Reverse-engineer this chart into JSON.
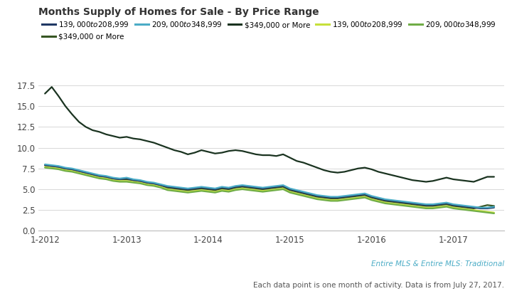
{
  "title": "Months Supply of Homes for Sale - By Price Range",
  "footnote": "Each data point is one month of activity. Data is from July 27, 2017.",
  "background_color": "#ffffff",
  "plot_bg_color": "#ffffff",
  "grid_color": "#d8d8d8",
  "ylim": [
    0.0,
    18.5
  ],
  "yticks": [
    0.0,
    2.5,
    5.0,
    7.5,
    10.0,
    12.5,
    15.0,
    17.5
  ],
  "xtick_labels": [
    "1-2012",
    "1-2013",
    "1-2014",
    "1-2015",
    "1-2016",
    "1-2017"
  ],
  "colors": {
    "dark_139_208": "#1f3864",
    "dark_209_348": "#4bacc6",
    "dark_349_more": "#1a3320",
    "green_139_208": "#c6e03b",
    "green_209_348": "#70ad47",
    "green_349_more": "#375623"
  },
  "labels": {
    "dark_139_208": "$139,000 to $208,999",
    "dark_209_348": "$209,000 to $348,999",
    "dark_349_more": "$349,000 or More",
    "green_139_208": "$139,000 to $208,999",
    "green_209_348": "$209,000 to $348,999",
    "green_349_more": "$349,000 or More"
  },
  "series": {
    "dark_139_208": [
      7.9,
      7.8,
      7.7,
      7.5,
      7.4,
      7.2,
      7.0,
      6.8,
      6.6,
      6.5,
      6.3,
      6.2,
      6.3,
      6.1,
      6.0,
      5.8,
      5.7,
      5.5,
      5.3,
      5.2,
      5.1,
      5.0,
      5.1,
      5.2,
      5.1,
      5.0,
      5.2,
      5.1,
      5.3,
      5.4,
      5.3,
      5.2,
      5.1,
      5.2,
      5.3,
      5.4,
      5.0,
      4.8,
      4.6,
      4.4,
      4.2,
      4.1,
      4.0,
      4.0,
      4.1,
      4.2,
      4.3,
      4.4,
      4.1,
      3.9,
      3.7,
      3.6,
      3.5,
      3.4,
      3.3,
      3.2,
      3.1,
      3.1,
      3.2,
      3.3,
      3.1,
      3.0,
      2.9,
      2.8,
      2.7,
      2.7,
      2.8
    ],
    "dark_209_348": [
      8.0,
      7.9,
      7.8,
      7.6,
      7.5,
      7.3,
      7.1,
      6.9,
      6.7,
      6.6,
      6.4,
      6.3,
      6.4,
      6.2,
      6.1,
      5.9,
      5.8,
      5.6,
      5.4,
      5.3,
      5.2,
      5.1,
      5.2,
      5.3,
      5.2,
      5.1,
      5.3,
      5.2,
      5.4,
      5.5,
      5.4,
      5.3,
      5.2,
      5.3,
      5.4,
      5.5,
      5.1,
      4.9,
      4.7,
      4.5,
      4.3,
      4.2,
      4.1,
      4.1,
      4.2,
      4.3,
      4.4,
      4.5,
      4.2,
      4.0,
      3.8,
      3.7,
      3.6,
      3.5,
      3.4,
      3.3,
      3.2,
      3.2,
      3.3,
      3.4,
      3.2,
      3.1,
      3.0,
      2.9,
      2.8,
      2.8,
      2.9
    ],
    "dark_349_more": [
      16.5,
      17.3,
      16.2,
      15.0,
      14.0,
      13.1,
      12.5,
      12.1,
      11.9,
      11.6,
      11.4,
      11.2,
      11.3,
      11.1,
      11.0,
      10.8,
      10.6,
      10.3,
      10.0,
      9.7,
      9.5,
      9.2,
      9.4,
      9.7,
      9.5,
      9.3,
      9.4,
      9.6,
      9.7,
      9.6,
      9.4,
      9.2,
      9.1,
      9.1,
      9.0,
      9.2,
      8.8,
      8.4,
      8.2,
      7.9,
      7.6,
      7.3,
      7.1,
      7.0,
      7.1,
      7.3,
      7.5,
      7.6,
      7.4,
      7.1,
      6.9,
      6.7,
      6.5,
      6.3,
      6.1,
      6.0,
      5.9,
      6.0,
      6.2,
      6.4,
      6.2,
      6.1,
      6.0,
      5.9,
      6.2,
      6.5,
      6.5
    ],
    "green_139_208": [
      7.7,
      7.6,
      7.5,
      7.3,
      7.2,
      7.0,
      6.8,
      6.6,
      6.4,
      6.3,
      6.1,
      6.0,
      6.0,
      5.9,
      5.8,
      5.6,
      5.5,
      5.3,
      5.0,
      4.9,
      4.8,
      4.7,
      4.8,
      4.9,
      4.8,
      4.7,
      4.9,
      4.8,
      5.0,
      5.1,
      5.0,
      4.9,
      4.8,
      4.9,
      5.0,
      5.1,
      4.7,
      4.5,
      4.3,
      4.1,
      3.9,
      3.8,
      3.7,
      3.7,
      3.8,
      3.9,
      4.0,
      4.1,
      3.8,
      3.6,
      3.4,
      3.3,
      3.2,
      3.1,
      3.0,
      2.9,
      2.8,
      2.8,
      2.9,
      3.0,
      2.8,
      2.7,
      2.6,
      2.5,
      2.4,
      2.3,
      2.2
    ],
    "green_209_348": [
      7.6,
      7.5,
      7.4,
      7.2,
      7.1,
      6.9,
      6.7,
      6.5,
      6.3,
      6.2,
      6.0,
      5.9,
      5.9,
      5.8,
      5.7,
      5.5,
      5.4,
      5.2,
      4.9,
      4.8,
      4.7,
      4.6,
      4.7,
      4.8,
      4.7,
      4.6,
      4.8,
      4.7,
      4.9,
      5.0,
      4.9,
      4.8,
      4.7,
      4.8,
      4.9,
      5.0,
      4.6,
      4.4,
      4.2,
      4.0,
      3.8,
      3.7,
      3.6,
      3.6,
      3.7,
      3.8,
      3.9,
      4.0,
      3.7,
      3.5,
      3.3,
      3.2,
      3.1,
      3.0,
      2.9,
      2.8,
      2.7,
      2.7,
      2.8,
      2.9,
      2.7,
      2.6,
      2.5,
      2.4,
      2.3,
      2.2,
      2.1
    ],
    "green_349_more": [
      7.9,
      7.8,
      7.7,
      7.5,
      7.4,
      7.2,
      7.0,
      6.8,
      6.6,
      6.5,
      6.3,
      6.2,
      6.2,
      6.1,
      6.0,
      5.8,
      5.7,
      5.5,
      5.2,
      5.1,
      5.0,
      4.9,
      5.0,
      5.1,
      5.0,
      4.9,
      5.1,
      5.0,
      5.2,
      5.3,
      5.2,
      5.1,
      5.0,
      5.1,
      5.2,
      5.3,
      4.9,
      4.7,
      4.5,
      4.3,
      4.1,
      4.0,
      3.9,
      3.9,
      4.0,
      4.1,
      4.2,
      4.3,
      4.0,
      3.8,
      3.6,
      3.5,
      3.4,
      3.3,
      3.2,
      3.1,
      3.0,
      3.0,
      3.1,
      3.2,
      3.0,
      2.9,
      2.8,
      2.7,
      2.9,
      3.1,
      3.0
    ]
  },
  "n_points": 67
}
